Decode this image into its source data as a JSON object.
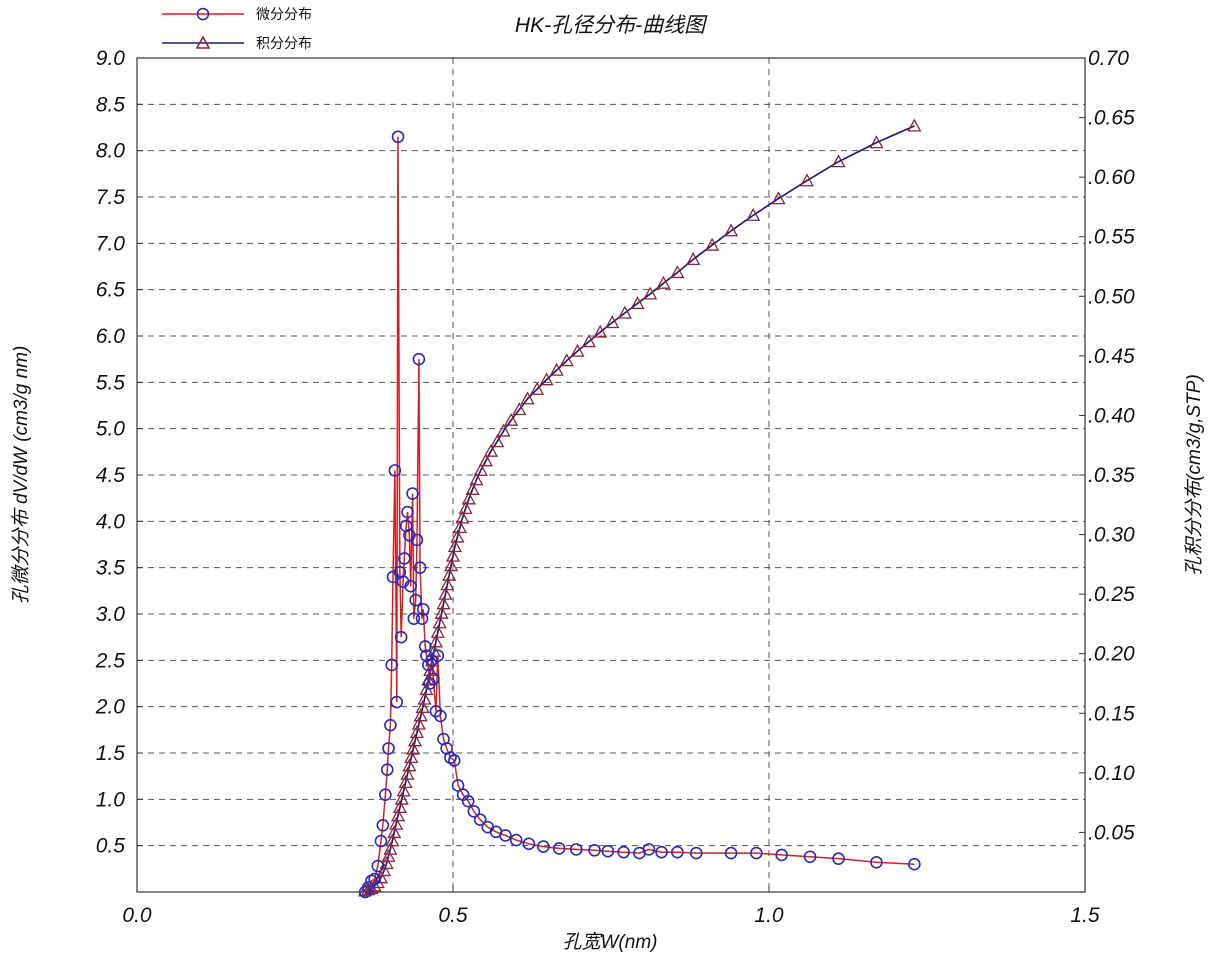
{
  "chart_data": {
    "type": "line",
    "title": "HK-孔径分布-曲线图",
    "xlabel": "孔宽W(nm)",
    "ylabel": "孔微分分布 dV/dW (cm3/g nm)",
    "y2label": "孔积分分布(cm3/g,STP)",
    "xlim": [
      0.0,
      1.5
    ],
    "ylim": [
      0.0,
      9.0
    ],
    "y2lim": [
      0.0,
      0.7
    ],
    "grid": true,
    "legend_position": "top-left",
    "x_ticks": [
      "0.0",
      "0.5",
      "1.0",
      "1.5"
    ],
    "y_ticks": [
      "0.5",
      "1.0",
      "1.5",
      "2.0",
      "2.5",
      "3.0",
      "3.5",
      "4.0",
      "4.5",
      "5.0",
      "5.5",
      "6.0",
      "6.5",
      "7.0",
      "7.5",
      "8.0",
      "8.5",
      "9.0"
    ],
    "y2_ticks": [
      ".0.05",
      ".0.10",
      ".0.15",
      ".0.20",
      ".0.25",
      ".0.30",
      ".0.35",
      ".0.40",
      ".0.45",
      ".0.50",
      ".0.55",
      ".0.60",
      ".0.65",
      "0.70"
    ],
    "series": [
      {
        "name": "微分分布",
        "axis": "left",
        "marker": "circle",
        "line_color": "#d42020",
        "marker_color": "#2a2ab8",
        "x": [
          0.361,
          0.366,
          0.371,
          0.376,
          0.381,
          0.386,
          0.389,
          0.393,
          0.396,
          0.398,
          0.401,
          0.403,
          0.405,
          0.408,
          0.411,
          0.413,
          0.416,
          0.418,
          0.421,
          0.423,
          0.426,
          0.428,
          0.431,
          0.433,
          0.436,
          0.438,
          0.441,
          0.443,
          0.446,
          0.448,
          0.451,
          0.453,
          0.456,
          0.458,
          0.461,
          0.463,
          0.466,
          0.469,
          0.473,
          0.476,
          0.48,
          0.485,
          0.49,
          0.496,
          0.502,
          0.508,
          0.516,
          0.524,
          0.533,
          0.543,
          0.555,
          0.568,
          0.583,
          0.6,
          0.62,
          0.643,
          0.668,
          0.695,
          0.724,
          0.745,
          0.77,
          0.795,
          0.81,
          0.83,
          0.855,
          0.885,
          0.94,
          0.98,
          1.02,
          1.065,
          1.11,
          1.17,
          1.23
        ],
        "y": [
          0.0,
          0.05,
          0.12,
          0.14,
          0.28,
          0.55,
          0.72,
          1.05,
          1.32,
          1.55,
          1.8,
          2.45,
          3.4,
          4.55,
          2.05,
          8.15,
          3.45,
          2.75,
          3.35,
          3.6,
          3.95,
          4.1,
          3.85,
          3.3,
          4.3,
          2.95,
          3.15,
          3.8,
          5.75,
          3.5,
          2.95,
          3.05,
          2.65,
          2.55,
          2.45,
          2.25,
          2.5,
          2.3,
          1.95,
          2.55,
          1.9,
          1.65,
          1.55,
          1.45,
          1.42,
          1.15,
          1.05,
          0.98,
          0.87,
          0.78,
          0.7,
          0.65,
          0.61,
          0.56,
          0.52,
          0.49,
          0.47,
          0.46,
          0.45,
          0.44,
          0.43,
          0.42,
          0.46,
          0.43,
          0.43,
          0.42,
          0.42,
          0.42,
          0.4,
          0.38,
          0.36,
          0.32,
          0.3
        ]
      },
      {
        "name": "积分分布",
        "axis": "right",
        "marker": "triangle",
        "line_color": "#1c1c70",
        "marker_color": "#8a2538",
        "x": [
          0.361,
          0.366,
          0.371,
          0.376,
          0.381,
          0.386,
          0.391,
          0.395,
          0.398,
          0.401,
          0.404,
          0.407,
          0.41,
          0.413,
          0.416,
          0.419,
          0.422,
          0.425,
          0.428,
          0.431,
          0.434,
          0.437,
          0.44,
          0.443,
          0.446,
          0.449,
          0.452,
          0.455,
          0.458,
          0.461,
          0.464,
          0.467,
          0.47,
          0.473,
          0.476,
          0.479,
          0.482,
          0.485,
          0.488,
          0.491,
          0.494,
          0.497,
          0.5,
          0.503,
          0.507,
          0.511,
          0.515,
          0.52,
          0.525,
          0.531,
          0.537,
          0.544,
          0.552,
          0.56,
          0.57,
          0.58,
          0.592,
          0.605,
          0.618,
          0.633,
          0.648,
          0.664,
          0.68,
          0.697,
          0.715,
          0.733,
          0.752,
          0.772,
          0.792,
          0.812,
          0.833,
          0.855,
          0.88,
          0.91,
          0.94,
          0.975,
          1.015,
          1.06,
          1.11,
          1.17,
          1.23
        ],
        "y": [
          0.001,
          0.002,
          0.003,
          0.005,
          0.008,
          0.012,
          0.018,
          0.024,
          0.03,
          0.036,
          0.043,
          0.05,
          0.057,
          0.064,
          0.071,
          0.078,
          0.085,
          0.092,
          0.099,
          0.106,
          0.113,
          0.12,
          0.127,
          0.134,
          0.141,
          0.148,
          0.155,
          0.162,
          0.17,
          0.178,
          0.186,
          0.194,
          0.202,
          0.21,
          0.218,
          0.226,
          0.234,
          0.242,
          0.25,
          0.258,
          0.266,
          0.274,
          0.282,
          0.29,
          0.298,
          0.306,
          0.314,
          0.322,
          0.33,
          0.338,
          0.346,
          0.354,
          0.362,
          0.37,
          0.378,
          0.387,
          0.396,
          0.405,
          0.414,
          0.422,
          0.43,
          0.438,
          0.446,
          0.454,
          0.462,
          0.47,
          0.478,
          0.486,
          0.494,
          0.502,
          0.511,
          0.52,
          0.531,
          0.543,
          0.555,
          0.568,
          0.582,
          0.597,
          0.613,
          0.629,
          0.643
        ]
      }
    ]
  }
}
